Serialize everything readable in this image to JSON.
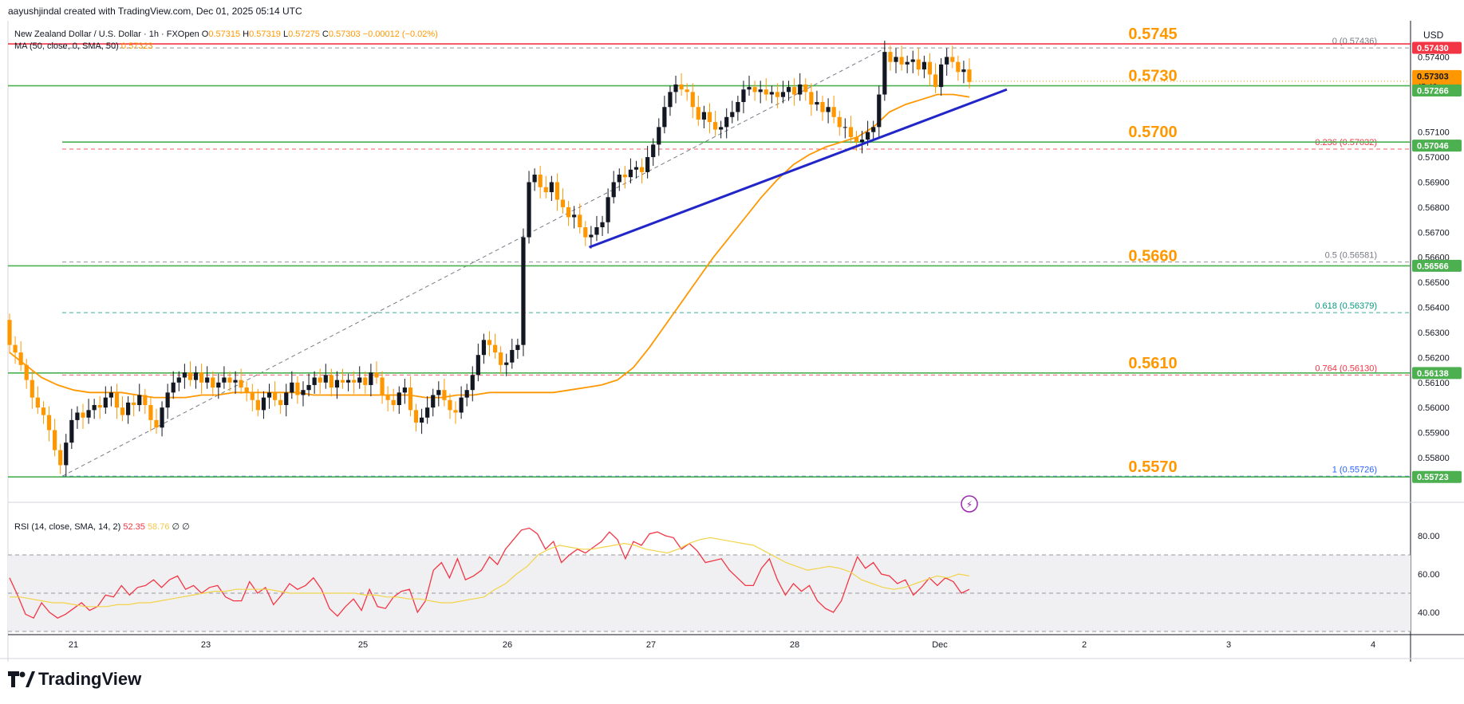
{
  "header": {
    "created_by": "aayushjindal created with TradingView.com, Dec 01, 2025 05:14 UTC"
  },
  "legend": {
    "symbol": "New Zealand Dollar / U.S. Dollar · 1h · FXOpen",
    "open_label": "O",
    "open": "0.57315",
    "high_label": "H",
    "high": "0.57319",
    "low_label": "L",
    "low": "0.57275",
    "close_label": "C",
    "close": "0.57303",
    "change": "−0.00012 (−0.02%)",
    "ma_label": "MA (50, close, 0, SMA, 50)",
    "ma_value": "0.57323",
    "rsi_label": "RSI (14, close, SMA, 14, 2)",
    "rsi_value": "52.35",
    "rsi_ma_value": "58.76",
    "rsi_extra": "∅ ∅"
  },
  "currency": "USD",
  "brand": "TradingView",
  "colors": {
    "bull": "#131722",
    "bear": "#ff9800",
    "ma": "#ff9800",
    "support": "#4caf50",
    "resistance": "#f23645",
    "trend": "#2226c8",
    "rsi": "#f23645",
    "rsi_ma": "#ffe082",
    "level_text": "#ff9800",
    "tag_green": "#4caf50",
    "tag_red": "#f23645",
    "tag_dark": "#ff9800"
  },
  "chart_data": {
    "type": "candlestick",
    "interval": "1h",
    "symbol": "NZDUSD",
    "x_ticks": [
      "21",
      "23",
      "25",
      "26",
      "27",
      "28",
      "Dec",
      "2",
      "3",
      "4"
    ],
    "y_ticks": [
      "0.57400",
      "0.57100",
      "0.57000",
      "0.56900",
      "0.56800",
      "0.56700",
      "0.56600",
      "0.56500",
      "0.56400",
      "0.56300",
      "0.56200",
      "0.56100",
      "0.56000",
      "0.55900",
      "0.55800"
    ],
    "ylim": [
      0.5566,
      0.575
    ],
    "levels": [
      {
        "label": "0.5745",
        "value": 0.57452,
        "color": "red"
      },
      {
        "label": "0.5730",
        "value": 0.57285,
        "color": "green"
      },
      {
        "label": "0.5700",
        "value": 0.5706,
        "color": "green"
      },
      {
        "label": "0.5660",
        "value": 0.56566,
        "color": "green"
      },
      {
        "label": "0.5610",
        "value": 0.56138,
        "color": "green"
      },
      {
        "label": "0.5570",
        "value": 0.55723,
        "color": "green"
      }
    ],
    "fib": [
      {
        "label": "0 (0.57436)",
        "value": 0.57436,
        "color": "#787b86"
      },
      {
        "label": "0.236 (0.57032)",
        "value": 0.57032,
        "color": "#f23645"
      },
      {
        "label": "0.5 (0.56581)",
        "value": 0.56581,
        "color": "#787b86"
      },
      {
        "label": "0.618 (0.56379)",
        "value": 0.56379,
        "color": "#089981"
      },
      {
        "label": "0.764 (0.56130)",
        "value": 0.5613,
        "color": "#f23645"
      },
      {
        "label": "1 (0.55726)",
        "value": 0.55726,
        "color": "#2962ff"
      }
    ],
    "price_tags": [
      {
        "text": "0.57430",
        "value": 0.5743,
        "color": "red"
      },
      {
        "text": "0.57303",
        "value": 0.57303,
        "color": "dark",
        "sub": "45:46"
      },
      {
        "text": "0.57266",
        "value": 0.57266,
        "color": "green"
      },
      {
        "text": "0.57046",
        "value": 0.57046,
        "color": "green"
      },
      {
        "text": "0.56566",
        "value": 0.56566,
        "color": "green"
      },
      {
        "text": "0.56138",
        "value": 0.56138,
        "color": "green"
      },
      {
        "text": "0.55723",
        "value": 0.55723,
        "color": "green"
      }
    ],
    "trendline": {
      "from": [
        0.5,
        0.5664
      ],
      "to": [
        0.95,
        0.5727
      ]
    },
    "close_series": [
      0.5625,
      0.5622,
      0.5617,
      0.5611,
      0.5604,
      0.56,
      0.5597,
      0.5591,
      0.5583,
      0.5577,
      0.5586,
      0.5595,
      0.5598,
      0.5596,
      0.5599,
      0.5601,
      0.56,
      0.5604,
      0.5606,
      0.56,
      0.5597,
      0.5602,
      0.5601,
      0.5605,
      0.5601,
      0.5595,
      0.5592,
      0.56,
      0.5606,
      0.561,
      0.5612,
      0.5614,
      0.5611,
      0.5614,
      0.561,
      0.5612,
      0.5608,
      0.561,
      0.5612,
      0.561,
      0.5611,
      0.5608,
      0.5606,
      0.5603,
      0.5599,
      0.5604,
      0.5606,
      0.5603,
      0.5601,
      0.5606,
      0.561,
      0.5605,
      0.5607,
      0.5609,
      0.5612,
      0.561,
      0.5613,
      0.5608,
      0.5611,
      0.561,
      0.5611,
      0.561,
      0.5612,
      0.5609,
      0.5614,
      0.5612,
      0.5605,
      0.5603,
      0.5601,
      0.5606,
      0.5608,
      0.5599,
      0.5594,
      0.5596,
      0.56,
      0.5605,
      0.5607,
      0.5603,
      0.5599,
      0.5598,
      0.5604,
      0.5607,
      0.5613,
      0.5621,
      0.5627,
      0.5625,
      0.5622,
      0.5617,
      0.5618,
      0.5623,
      0.5625,
      0.5668,
      0.569,
      0.5693,
      0.5688,
      0.5686,
      0.569,
      0.5683,
      0.568,
      0.5676,
      0.5677,
      0.5672,
      0.5668,
      0.5669,
      0.5672,
      0.5674,
      0.5684,
      0.569,
      0.5693,
      0.5692,
      0.5695,
      0.5696,
      0.5694,
      0.57,
      0.5705,
      0.5712,
      0.572,
      0.5726,
      0.5729,
      0.5727,
      0.5726,
      0.572,
      0.5715,
      0.5718,
      0.5714,
      0.5711,
      0.5712,
      0.5716,
      0.5718,
      0.5722,
      0.5727,
      0.5728,
      0.5726,
      0.5727,
      0.5725,
      0.5726,
      0.5724,
      0.5726,
      0.5728,
      0.5725,
      0.5729,
      0.5726,
      0.5721,
      0.5722,
      0.5718,
      0.572,
      0.5716,
      0.5712,
      0.5712,
      0.5708,
      0.5706,
      0.5707,
      0.571,
      0.5712,
      0.5725,
      0.5742,
      0.5738,
      0.574,
      0.5737,
      0.5738,
      0.5739,
      0.5735,
      0.5738,
      0.5733,
      0.5728,
      0.5737,
      0.574,
      0.5738,
      0.5734,
      0.5735,
      0.573
    ],
    "ma_series": [
      0.5622,
      0.5617,
      0.5612,
      0.5609,
      0.5607,
      0.5606,
      0.5606,
      0.5606,
      0.5605,
      0.5604,
      0.5604,
      0.5604,
      0.5605,
      0.5605,
      0.5606,
      0.5606,
      0.5606,
      0.5606,
      0.5606,
      0.5605,
      0.5605,
      0.5605,
      0.5605,
      0.5605,
      0.5605,
      0.5605,
      0.5604,
      0.5604,
      0.5605,
      0.5605,
      0.5606,
      0.5606,
      0.5606,
      0.5606,
      0.5606,
      0.5607,
      0.5608,
      0.5609,
      0.5611,
      0.5616,
      0.5624,
      0.5633,
      0.5642,
      0.5651,
      0.566,
      0.5668,
      0.5676,
      0.5684,
      0.5691,
      0.5697,
      0.5701,
      0.5704,
      0.5706,
      0.5708,
      0.5712,
      0.5718,
      0.5721,
      0.5723,
      0.5725,
      0.5725,
      0.5724
    ],
    "rsi": [
      58,
      49,
      39,
      37,
      45,
      40,
      37,
      39,
      42,
      45,
      41,
      43,
      49,
      48,
      54,
      49,
      53,
      54,
      57,
      53,
      57,
      59,
      52,
      54,
      50,
      53,
      54,
      48,
      46,
      46,
      56,
      50,
      53,
      44,
      49,
      55,
      52,
      54,
      58,
      52,
      42,
      38,
      43,
      47,
      41,
      52,
      43,
      42,
      48,
      51,
      52,
      40,
      46,
      62,
      66,
      58,
      68,
      57,
      59,
      62,
      69,
      65,
      73,
      78,
      83,
      84,
      81,
      73,
      77,
      66,
      70,
      73,
      71,
      74,
      77,
      82,
      78,
      68,
      77,
      75,
      81,
      82,
      80,
      79,
      73,
      76,
      72,
      66,
      67,
      68,
      62,
      58,
      54,
      54,
      63,
      68,
      57,
      49,
      55,
      51,
      54,
      46,
      42,
      40,
      46,
      58,
      69,
      63,
      66,
      60,
      59,
      55,
      57,
      49,
      53,
      58,
      54,
      58,
      56,
      50,
      52
    ],
    "rsi_ma": [
      48,
      48,
      47,
      46,
      45,
      45,
      44,
      43,
      43,
      43,
      44,
      44,
      45,
      45,
      46,
      47,
      48,
      49,
      50,
      51,
      51,
      52,
      52,
      52,
      52,
      51,
      50,
      50,
      50,
      50,
      50,
      50,
      50,
      49,
      49,
      48,
      48,
      47,
      47,
      46,
      45,
      45,
      46,
      47,
      48,
      52,
      55,
      60,
      64,
      70,
      73,
      75,
      74,
      73,
      73,
      74,
      75,
      76,
      75,
      73,
      72,
      71,
      73,
      76,
      78,
      79,
      78,
      77,
      76,
      75,
      72,
      69,
      66,
      64,
      62,
      63,
      64,
      63,
      61,
      57,
      55,
      53,
      52,
      53,
      55,
      57,
      59,
      58,
      60,
      59
    ],
    "rsi_ylim": [
      30,
      90
    ],
    "rsi_ticks": [
      "80.00",
      "60.00",
      "40.00"
    ]
  }
}
